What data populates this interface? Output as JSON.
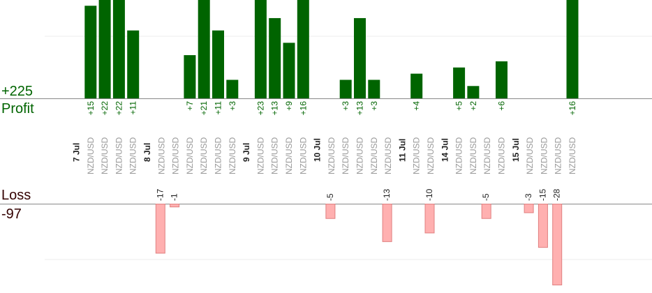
{
  "summary": {
    "profit_total": "+225",
    "profit_label": "Profit",
    "loss_label": "Loss",
    "loss_total": "-97"
  },
  "chart_data": {
    "type": "bar",
    "title": "",
    "xlabel": "",
    "ylabel": "",
    "colors": {
      "profit": "#006400",
      "loss": "#ffb0b0",
      "loss_border": "#e08080",
      "axis": "#888888",
      "grid": "#eeeeee"
    },
    "profit_ylim": [
      0,
      16
    ],
    "loss_ylim": [
      0,
      28
    ],
    "days": [
      {
        "date": "7 Jul",
        "trades": [
          {
            "pair": "NZD/USD",
            "value": 15
          },
          {
            "pair": "NZD/USD",
            "value": 22
          },
          {
            "pair": "NZD/USD",
            "value": 22
          },
          {
            "pair": "NZD/USD",
            "value": 11
          }
        ]
      },
      {
        "date": "8 Jul",
        "trades": [
          {
            "pair": "NZD/USD",
            "value": -17
          },
          {
            "pair": "NZD/USD",
            "value": -1
          },
          {
            "pair": "NZD/USD",
            "value": 7
          },
          {
            "pair": "NZD/USD",
            "value": 21
          },
          {
            "pair": "NZD/USD",
            "value": 11
          },
          {
            "pair": "NZD/USD",
            "value": 3
          }
        ]
      },
      {
        "date": "9 Jul",
        "trades": [
          {
            "pair": "NZD/USD",
            "value": 23
          },
          {
            "pair": "NZD/USD",
            "value": 13
          },
          {
            "pair": "NZD/USD",
            "value": 9
          },
          {
            "pair": "NZD/USD",
            "value": 16
          }
        ]
      },
      {
        "date": "10 Jul",
        "trades": [
          {
            "pair": "NZD/USD",
            "value": -5
          },
          {
            "pair": "NZD/USD",
            "value": 3
          },
          {
            "pair": "NZD/USD",
            "value": 13
          },
          {
            "pair": "NZD/USD",
            "value": 3
          },
          {
            "pair": "NZD/USD",
            "value": -13
          }
        ]
      },
      {
        "date": "11 Jul",
        "trades": [
          {
            "pair": "NZD/USD",
            "value": 4
          },
          {
            "pair": "NZD/USD",
            "value": -10
          }
        ]
      },
      {
        "date": "14 Jul",
        "trades": [
          {
            "pair": "NZD/USD",
            "value": 5
          },
          {
            "pair": "NZD/USD",
            "value": 2
          },
          {
            "pair": "NZD/USD",
            "value": -5
          },
          {
            "pair": "NZD/USD",
            "value": 6
          }
        ]
      },
      {
        "date": "15 Jul",
        "trades": [
          {
            "pair": "NZD/USD",
            "value": -3
          },
          {
            "pair": "NZD/USD",
            "value": -15
          },
          {
            "pair": "NZD/USD",
            "value": -28
          },
          {
            "pair": "NZD/USD",
            "value": 16
          }
        ]
      }
    ]
  }
}
